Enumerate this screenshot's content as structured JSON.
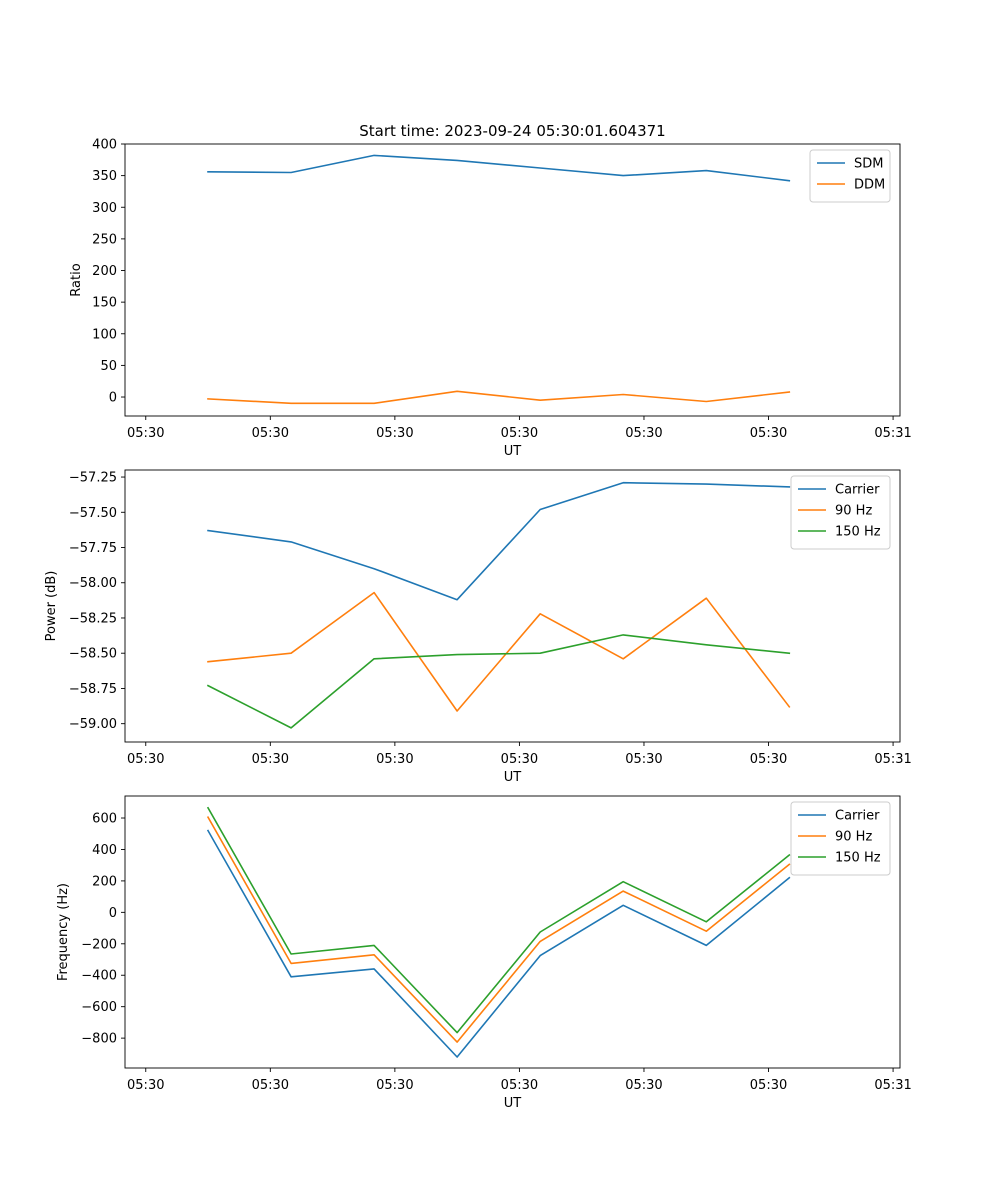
{
  "figure_title": "Start time: 2023-09-24 05:30:01.604371",
  "colors": {
    "c0": "#1f77b4",
    "c1": "#ff7f0e",
    "c2": "#2ca02c"
  },
  "chart_data": [
    {
      "type": "line",
      "xlabel": "UT",
      "ylabel": "Ratio",
      "x": [
        0.6,
        1.2,
        1.8,
        2.4,
        3.0,
        3.6,
        4.2,
        4.8
      ],
      "xlim": [
        0,
        5.6
      ],
      "x_ticks": [
        0.15,
        1.05,
        1.95,
        2.85,
        3.75,
        4.65,
        5.55
      ],
      "x_tick_labels": [
        "05:30",
        "05:30",
        "05:30",
        "05:30",
        "05:30",
        "05:30",
        "05:31"
      ],
      "ylim": [
        -30,
        400
      ],
      "y_ticks": [
        0,
        50,
        100,
        150,
        200,
        250,
        300,
        350,
        400
      ],
      "y_tick_labels": [
        "0",
        "50",
        "100",
        "150",
        "200",
        "250",
        "300",
        "350",
        "400"
      ],
      "legend_position": "top-right",
      "grid": false,
      "series": [
        {
          "name": "SDM",
          "color": "#1f77b4",
          "values": [
            356,
            355,
            382,
            374,
            362,
            350,
            358,
            342
          ]
        },
        {
          "name": "DDM",
          "color": "#ff7f0e",
          "values": [
            -3,
            -10,
            -10,
            9,
            -5,
            4,
            -7,
            8
          ]
        }
      ]
    },
    {
      "type": "line",
      "xlabel": "UT",
      "ylabel": "Power (dB)",
      "x": [
        0.6,
        1.2,
        1.8,
        2.4,
        3.0,
        3.6,
        4.2,
        4.8
      ],
      "xlim": [
        0,
        5.6
      ],
      "x_ticks": [
        0.15,
        1.05,
        1.95,
        2.85,
        3.75,
        4.65,
        5.55
      ],
      "x_tick_labels": [
        "05:30",
        "05:30",
        "05:30",
        "05:30",
        "05:30",
        "05:30",
        "05:31"
      ],
      "ylim": [
        -59.13,
        -57.2
      ],
      "y_ticks": [
        -59.0,
        -58.75,
        -58.5,
        -58.25,
        -58.0,
        -57.75,
        -57.5,
        -57.25
      ],
      "y_tick_labels": [
        "−59.00",
        "−58.75",
        "−58.50",
        "−58.25",
        "−58.00",
        "−57.75",
        "−57.50",
        "−57.25"
      ],
      "legend_position": "top-right",
      "grid": false,
      "series": [
        {
          "name": "Carrier",
          "color": "#1f77b4",
          "values": [
            -57.63,
            -57.71,
            -57.9,
            -58.12,
            -57.48,
            -57.29,
            -57.3,
            -57.32
          ]
        },
        {
          "name": "90 Hz",
          "color": "#ff7f0e",
          "values": [
            -58.56,
            -58.5,
            -58.07,
            -58.91,
            -58.22,
            -58.54,
            -58.11,
            -58.88
          ]
        },
        {
          "name": "150 Hz",
          "color": "#2ca02c",
          "values": [
            -58.73,
            -59.03,
            -58.54,
            -58.51,
            -58.5,
            -58.37,
            -58.44,
            -58.5
          ]
        }
      ]
    },
    {
      "type": "line",
      "xlabel": "UT",
      "ylabel": "Frequency (Hz)",
      "x": [
        0.6,
        1.2,
        1.8,
        2.4,
        3.0,
        3.6,
        4.2,
        4.8
      ],
      "xlim": [
        0,
        5.6
      ],
      "x_ticks": [
        0.15,
        1.05,
        1.95,
        2.85,
        3.75,
        4.65,
        5.55
      ],
      "x_tick_labels": [
        "05:30",
        "05:30",
        "05:30",
        "05:30",
        "05:30",
        "05:30",
        "05:31"
      ],
      "ylim": [
        -990,
        740
      ],
      "y_ticks": [
        -800,
        -600,
        -400,
        -200,
        0,
        200,
        400,
        600
      ],
      "y_tick_labels": [
        "−800",
        "−600",
        "−400",
        "−200",
        "0",
        "200",
        "400",
        "600"
      ],
      "legend_position": "top-right",
      "grid": false,
      "series": [
        {
          "name": "Carrier",
          "color": "#1f77b4",
          "values": [
            520,
            -410,
            -360,
            -920,
            -275,
            45,
            -210,
            220
          ]
        },
        {
          "name": "90 Hz",
          "color": "#ff7f0e",
          "values": [
            605,
            -325,
            -270,
            -825,
            -185,
            135,
            -120,
            305
          ]
        },
        {
          "name": "150 Hz",
          "color": "#2ca02c",
          "values": [
            665,
            -265,
            -210,
            -765,
            -125,
            195,
            -60,
            365
          ]
        }
      ]
    }
  ]
}
